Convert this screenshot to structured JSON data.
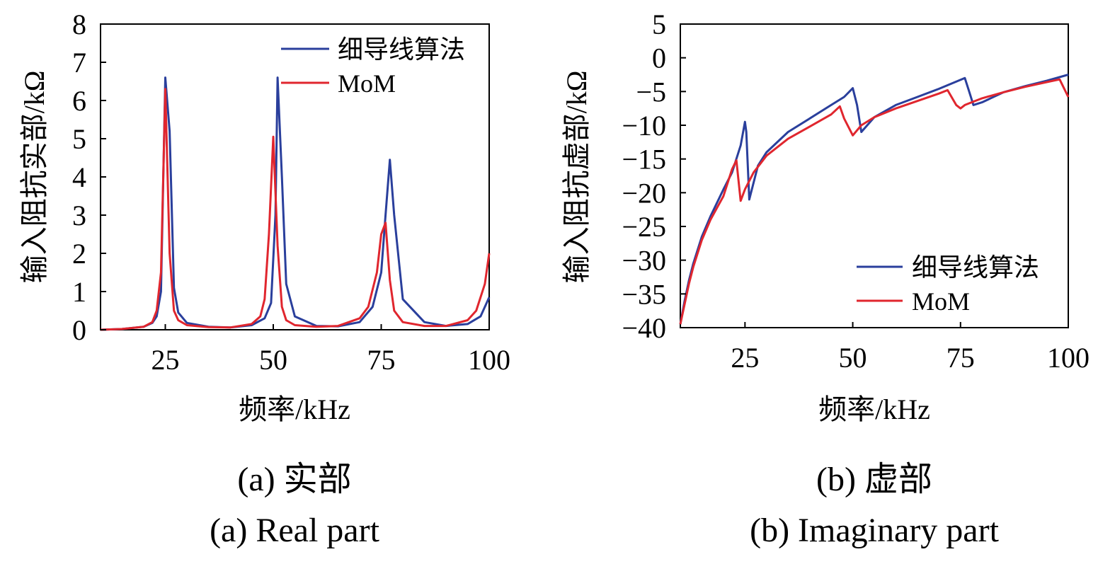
{
  "colors": {
    "fine_wire": "#2a3f9c",
    "mom": "#e0262e",
    "axis": "#000000"
  },
  "chart_data": [
    {
      "type": "line",
      "xlabel": "频率/kHz",
      "ylabel": "输入阻抗实部/kΩ",
      "xlim": [
        10,
        100
      ],
      "ylim": [
        0,
        8
      ],
      "xticks": [
        "25",
        "50",
        "75",
        "100"
      ],
      "xtick_values": [
        25,
        50,
        75,
        100
      ],
      "yticks": [
        "0",
        "1",
        "2",
        "3",
        "4",
        "5",
        "6",
        "7",
        "8"
      ],
      "ytick_values": [
        0,
        1,
        2,
        3,
        4,
        5,
        6,
        7,
        8
      ],
      "legend_position": "top-right",
      "caption_cn": "(a) 实部",
      "caption_en": "(a) Real part",
      "series": [
        {
          "name": "细导线算法",
          "color": "#2a3f9c",
          "x": [
            10,
            15,
            20,
            22,
            23,
            24,
            25,
            26,
            27,
            28,
            30,
            35,
            40,
            45,
            48,
            49.5,
            50.5,
            51,
            52,
            53,
            55,
            60,
            65,
            70,
            73,
            75,
            76,
            77,
            78,
            80,
            85,
            90,
            95,
            98,
            100
          ],
          "y": [
            0,
            0.02,
            0.08,
            0.18,
            0.35,
            1.0,
            6.6,
            5.2,
            1.1,
            0.45,
            0.18,
            0.08,
            0.06,
            0.12,
            0.3,
            0.7,
            3.0,
            6.6,
            4.0,
            1.2,
            0.35,
            0.1,
            0.09,
            0.2,
            0.6,
            1.5,
            3.0,
            4.45,
            3.0,
            0.8,
            0.2,
            0.1,
            0.15,
            0.35,
            0.85
          ]
        },
        {
          "name": "MoM",
          "color": "#e0262e",
          "x": [
            10,
            15,
            20,
            22,
            23,
            24,
            25,
            26,
            27,
            28,
            30,
            35,
            40,
            45,
            47,
            48,
            49,
            50,
            51,
            52,
            53,
            55,
            60,
            65,
            70,
            72,
            74,
            75,
            76,
            77,
            78,
            80,
            85,
            90,
            95,
            97,
            99,
            100
          ],
          "y": [
            0,
            0.02,
            0.08,
            0.2,
            0.5,
            1.5,
            6.3,
            2.0,
            0.5,
            0.25,
            0.12,
            0.07,
            0.06,
            0.15,
            0.35,
            0.8,
            2.5,
            5.05,
            2.2,
            0.6,
            0.25,
            0.12,
            0.08,
            0.1,
            0.3,
            0.6,
            1.5,
            2.5,
            2.8,
            1.3,
            0.5,
            0.2,
            0.1,
            0.1,
            0.25,
            0.5,
            1.2,
            2.0
          ]
        }
      ]
    },
    {
      "type": "line",
      "xlabel": "频率/kHz",
      "ylabel": "输入阻抗虚部/kΩ",
      "xlim": [
        10,
        100
      ],
      "ylim": [
        -40,
        5
      ],
      "xticks": [
        "25",
        "50",
        "75",
        "100"
      ],
      "xtick_values": [
        25,
        50,
        75,
        100
      ],
      "yticks": [
        "5",
        "0",
        "−5",
        "−10",
        "−15",
        "−20",
        "−25",
        "−30",
        "−35",
        "−40"
      ],
      "ytick_values": [
        5,
        0,
        -5,
        -10,
        -15,
        -20,
        -25,
        -30,
        -35,
        -40
      ],
      "legend_position": "bottom-right",
      "caption_cn": "(b) 虚部",
      "caption_en": "(b) Imaginary part",
      "series": [
        {
          "name": "细导线算法",
          "color": "#2a3f9c",
          "x": [
            10,
            11,
            12,
            13,
            15,
            17,
            20,
            22,
            24,
            25,
            25.3,
            26,
            28,
            30,
            35,
            40,
            45,
            48,
            50,
            51,
            52,
            55,
            60,
            65,
            70,
            73,
            76,
            77,
            78,
            80,
            85,
            90,
            95,
            100
          ],
          "y": [
            -39.5,
            -36,
            -33,
            -30.5,
            -26.5,
            -23.5,
            -19.5,
            -17,
            -13,
            -9.5,
            -11,
            -21,
            -16,
            -14,
            -11,
            -9,
            -7,
            -5.8,
            -4.5,
            -7,
            -11,
            -8.8,
            -7,
            -5.8,
            -4.6,
            -3.8,
            -3,
            -5,
            -7,
            -6.6,
            -5.1,
            -4.2,
            -3.4,
            -2.5
          ]
        },
        {
          "name": "MoM",
          "color": "#e0262e",
          "x": [
            10,
            11,
            12,
            13,
            15,
            17,
            20,
            21,
            22,
            23,
            24,
            25,
            27,
            30,
            35,
            40,
            45,
            47,
            48,
            50,
            52,
            55,
            60,
            65,
            70,
            72,
            74,
            75,
            76,
            78,
            80,
            85,
            90,
            95,
            98,
            100
          ],
          "y": [
            -39.5,
            -36.5,
            -33.5,
            -31,
            -27,
            -24,
            -20.5,
            -18.5,
            -16.5,
            -15.2,
            -21.2,
            -19.5,
            -17,
            -14.5,
            -12,
            -10.2,
            -8.4,
            -7.2,
            -9,
            -11.5,
            -10,
            -8.8,
            -7.5,
            -6.4,
            -5.3,
            -4.8,
            -7,
            -7.5,
            -7,
            -6.5,
            -6,
            -5.1,
            -4.3,
            -3.6,
            -3.2,
            -5.8
          ]
        }
      ]
    }
  ]
}
